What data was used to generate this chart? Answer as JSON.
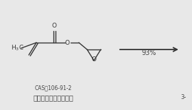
{
  "background_color": "#e8e8e8",
  "cas_label": "CAS：106-91-2",
  "name_label": "甲基丙烯酸缩水甘油酯",
  "right_label": "3-",
  "yield_label": "93%",
  "text_color": "#444444",
  "line_color": "#333333",
  "fig_width": 2.8,
  "fig_height": 1.6,
  "dpi": 100
}
